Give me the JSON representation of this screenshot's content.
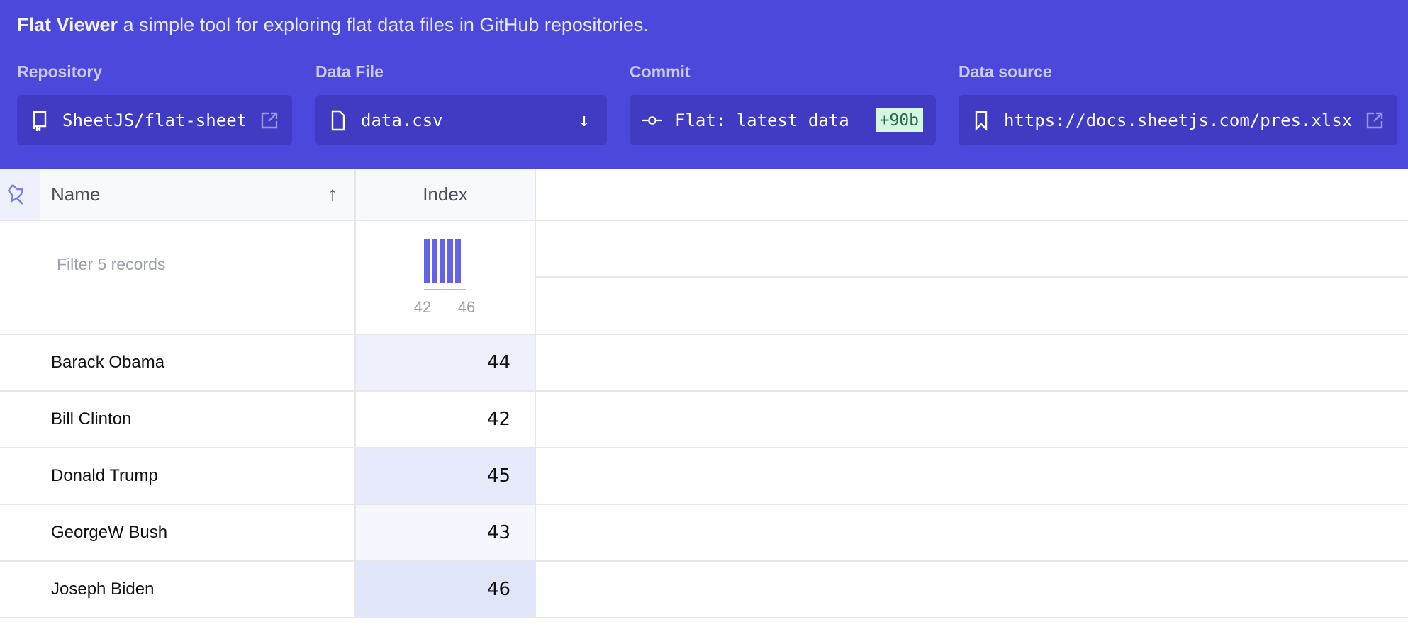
{
  "header": {
    "title_bold": "Flat Viewer",
    "title_rest": " a simple tool for exploring flat data files in GitHub repositories."
  },
  "repository": {
    "label": "Repository",
    "value": "SheetJS/flat-sheet",
    "icon": "repo-icon"
  },
  "data_file": {
    "label": "Data File",
    "value": "data.csv",
    "icon": "file-icon"
  },
  "commit": {
    "label": "Commit",
    "value": "Flat: latest data",
    "badge": "+90b",
    "icon": "git-commit-icon"
  },
  "data_source": {
    "label": "Data source",
    "value": "https://docs.sheetjs.com/pres.xlsx",
    "icon": "bookmark-icon"
  },
  "table": {
    "columns": [
      {
        "label": "Name",
        "sort": "ascending"
      },
      {
        "label": "Index"
      }
    ],
    "filter_placeholder": "Filter 5 records",
    "histogram": {
      "min_label": "42",
      "max_label": "46",
      "values": [
        42,
        43,
        44,
        45,
        46
      ]
    },
    "rows": [
      {
        "name": "Barack Obama",
        "index": "44",
        "shade": "#eef0fc"
      },
      {
        "name": "Bill Clinton",
        "index": "42",
        "shade": "#ffffff"
      },
      {
        "name": "Donald Trump",
        "index": "45",
        "shade": "#e7eafb"
      },
      {
        "name": "GeorgeW Bush",
        "index": "43",
        "shade": "#f6f7fe"
      },
      {
        "name": "Joseph Biden",
        "index": "46",
        "shade": "#e0e5fa"
      }
    ]
  },
  "colors": {
    "header_bg": "#4c48dc",
    "box_bg": "#413ac3",
    "bar": "#6363e6"
  }
}
